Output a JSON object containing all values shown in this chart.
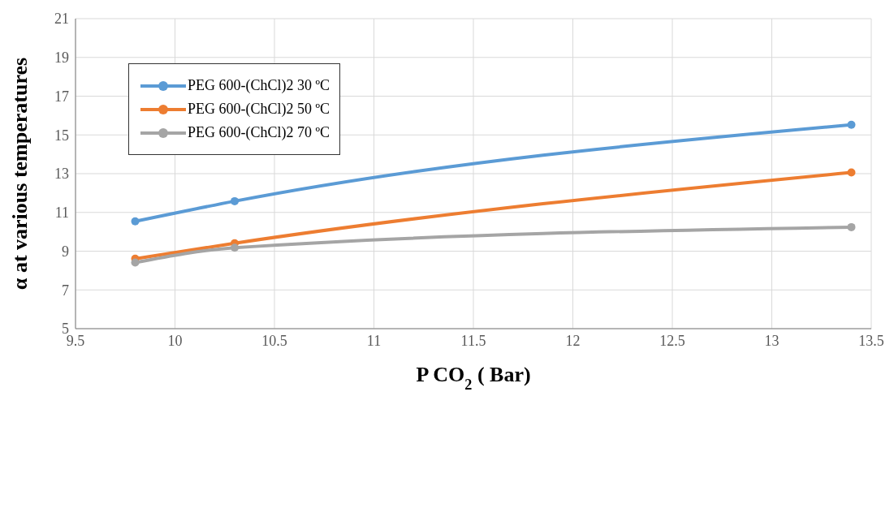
{
  "chart_data": {
    "type": "line",
    "xlabel": "P CO$_{2}$ ( Bar)",
    "ylabel": "α at various temperatures",
    "x": [
      9.8,
      10.3,
      13.4
    ],
    "series": [
      {
        "name": "PEG 600-(ChCl)2 30 ºC",
        "color": "#5b9bd5",
        "values": [
          10.54,
          11.58,
          15.52
        ]
      },
      {
        "name": "PEG 600-(ChCl)2 50 ºC",
        "color": "#ed7d31",
        "values": [
          8.61,
          9.41,
          13.06
        ]
      },
      {
        "name": "PEG 600-(ChCl)2 70 ºC",
        "color": "#a5a5a5",
        "values": [
          8.41,
          9.18,
          10.24
        ]
      }
    ],
    "xlim": [
      9.5,
      13.5
    ],
    "xticks": [
      9.5,
      10,
      10.5,
      11,
      11.5,
      12,
      12.5,
      13,
      13.5
    ],
    "ylim": [
      5,
      21
    ],
    "yticks": [
      5,
      7,
      9,
      11,
      13,
      15,
      17,
      19,
      21
    ],
    "grid": true,
    "legend": "top left",
    "marker": "circle",
    "line_style": "solid"
  }
}
